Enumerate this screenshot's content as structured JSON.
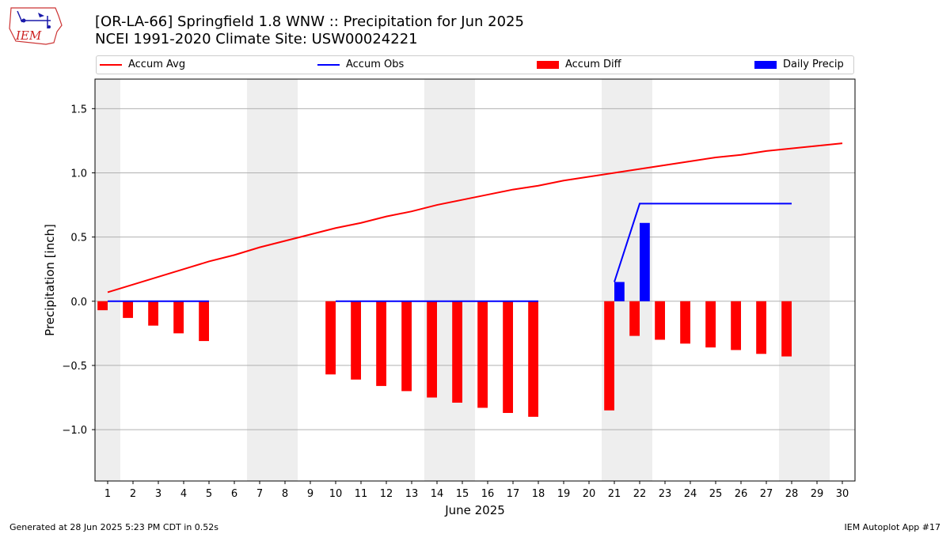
{
  "header": {
    "title_line1": "[OR-LA-66] Springfield 1.8 WNW :: Precipitation for Jun 2025",
    "title_line2": "NCEI 1991-2020 Climate Site: USW00024221",
    "logo_text": "IEM"
  },
  "footer": {
    "left": "Generated at 28 Jun 2025 5:23 PM CDT in 0.52s",
    "right": "IEM Autoplot App #17"
  },
  "colors": {
    "avg": "#ff0000",
    "obs": "#0000ff",
    "diff": "#ff0000",
    "daily": "#0000ff",
    "weekend": "#eeeeee",
    "grid": "#b0b0b0"
  },
  "chart_data": {
    "type": "bar",
    "xlabel": "June 2025",
    "ylabel": "Precipitation [inch]",
    "xlim": [
      0.5,
      30.5
    ],
    "ylim": [
      -1.4,
      1.73
    ],
    "yticks": [
      -1.0,
      -0.5,
      0.0,
      0.5,
      1.0,
      1.5
    ],
    "ytick_labels": [
      "−1.0",
      "−0.5",
      "0.0",
      "0.5",
      "1.0",
      "1.5"
    ],
    "xticks": [
      1,
      2,
      3,
      4,
      5,
      6,
      7,
      8,
      9,
      10,
      11,
      12,
      13,
      14,
      15,
      16,
      17,
      18,
      19,
      20,
      21,
      22,
      23,
      24,
      25,
      26,
      27,
      28,
      29,
      30
    ],
    "xtick_labels": [
      "1",
      "2",
      "3",
      "4",
      "5",
      "6",
      "7",
      "8",
      "9",
      "10",
      "11",
      "12",
      "13",
      "14",
      "15",
      "16",
      "17",
      "18",
      "19",
      "20",
      "21",
      "22",
      "23",
      "24",
      "25",
      "26",
      "27",
      "28",
      "29",
      "30"
    ],
    "grid": "horizontal",
    "legend_position": "top",
    "weekend_bands": [
      [
        0.5,
        1.5
      ],
      [
        6.5,
        8.5
      ],
      [
        13.5,
        15.5
      ],
      [
        20.5,
        22.5
      ],
      [
        27.5,
        29.5
      ]
    ],
    "series": [
      {
        "name": "Accum Avg",
        "kind": "line",
        "x": [
          1,
          2,
          3,
          4,
          5,
          6,
          7,
          8,
          9,
          10,
          11,
          12,
          13,
          14,
          15,
          16,
          17,
          18,
          19,
          20,
          21,
          22,
          23,
          24,
          25,
          26,
          27,
          28,
          29,
          30
        ],
        "values": [
          0.07,
          0.13,
          0.19,
          0.25,
          0.31,
          0.36,
          0.42,
          0.47,
          0.52,
          0.57,
          0.61,
          0.66,
          0.7,
          0.75,
          0.79,
          0.83,
          0.87,
          0.9,
          0.94,
          0.97,
          1.0,
          1.03,
          1.06,
          1.09,
          1.12,
          1.14,
          1.17,
          1.19,
          1.21,
          1.23
        ]
      },
      {
        "name": "Accum Obs",
        "kind": "line",
        "segments": [
          {
            "x": [
              1,
              2,
              3,
              4,
              5
            ],
            "values": [
              0,
              0,
              0,
              0,
              0
            ]
          },
          {
            "x": [
              10,
              11,
              12,
              13,
              14,
              15,
              16,
              17,
              18
            ],
            "values": [
              0,
              0,
              0,
              0,
              0,
              0,
              0,
              0,
              0
            ]
          },
          {
            "x": [
              21,
              22,
              23,
              24,
              25,
              26,
              27,
              28
            ],
            "values": [
              0.15,
              0.76,
              0.76,
              0.76,
              0.76,
              0.76,
              0.76,
              0.76
            ]
          }
        ]
      },
      {
        "name": "Accum Diff",
        "kind": "bar",
        "x": [
          1,
          2,
          3,
          4,
          5,
          10,
          11,
          12,
          13,
          14,
          15,
          16,
          17,
          18,
          21,
          22,
          23,
          24,
          25,
          26,
          27,
          28
        ],
        "values": [
          -0.07,
          -0.13,
          -0.19,
          -0.25,
          -0.31,
          -0.57,
          -0.61,
          -0.66,
          -0.7,
          -0.75,
          -0.79,
          -0.83,
          -0.87,
          -0.9,
          -0.85,
          -0.27,
          -0.3,
          -0.33,
          -0.36,
          -0.38,
          -0.41,
          -0.43
        ]
      },
      {
        "name": "Daily Precip",
        "kind": "bar",
        "x": [
          21,
          22
        ],
        "values": [
          0.15,
          0.61
        ]
      }
    ]
  }
}
